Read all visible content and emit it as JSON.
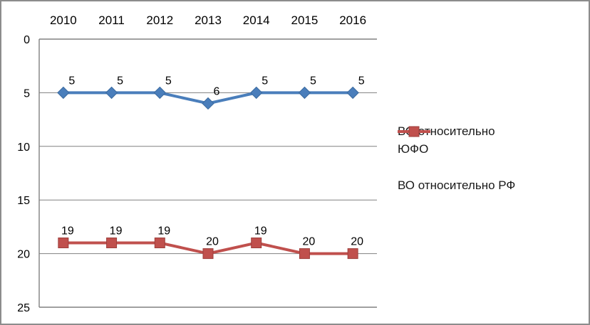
{
  "chart_data": {
    "type": "line",
    "title": "",
    "xlabel": "",
    "ylabel": "",
    "x_axis_position": "top",
    "categories": [
      "2010",
      "2011",
      "2012",
      "2013",
      "2014",
      "2015",
      "2016"
    ],
    "series": [
      {
        "name": "ВО относительно ЮФО",
        "name_lines": [
          "ВО относительно",
          "ЮФО"
        ],
        "values": [
          5,
          5,
          5,
          6,
          5,
          5,
          5
        ],
        "data_labels": [
          "5",
          "5",
          "5",
          "6",
          "5",
          "5",
          "5"
        ],
        "color": "#4a7ebb",
        "marker_edge_color": "#3a6a9f",
        "marker": "diamond"
      },
      {
        "name": "ВО относительно РФ",
        "name_lines": [
          "ВО относительно РФ"
        ],
        "values": [
          19,
          19,
          19,
          20,
          19,
          20,
          20
        ],
        "data_labels": [
          "19",
          "19",
          "19",
          "20",
          "19",
          "20",
          "20"
        ],
        "color": "#c0504d",
        "marker_edge_color": "#9c3e3b",
        "marker": "square"
      }
    ],
    "y_axis": {
      "min": 0,
      "max": 25,
      "step": 5,
      "inverted_values_downward": true,
      "tick_labels": [
        "0",
        "5",
        "10",
        "15",
        "20",
        "25"
      ]
    },
    "grid": true,
    "legend_position": "right",
    "show_data_labels": true
  },
  "colors": {
    "grid": "#808080",
    "axis": "#808080",
    "text": "#000000",
    "background": "#ffffff",
    "frame_border": "#8c8c8c"
  }
}
